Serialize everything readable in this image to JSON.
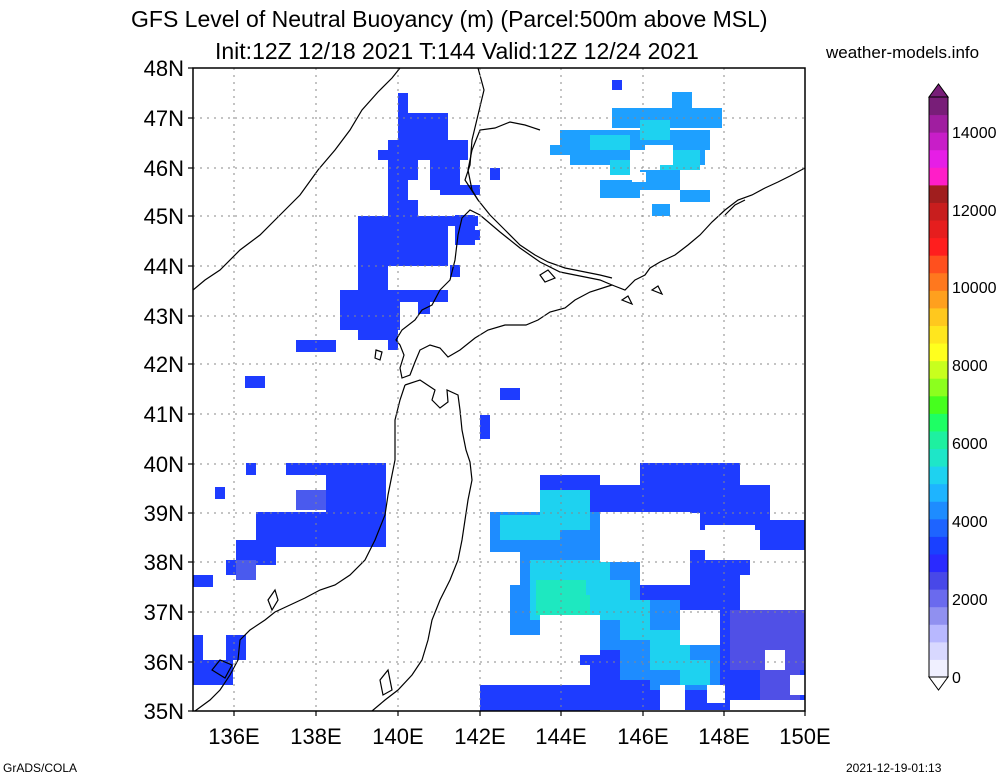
{
  "title_line1": "GFS Level of Neutral Buoyancy (m) (Parcel:500m above MSL)",
  "title_line2": "Init:12Z 12/18 2021 T:144 Valid:12Z 12/24 2021",
  "site": "weather-models.info",
  "footer_left": "GrADS/COLA",
  "footer_right": "2021-12-19-01:13",
  "lat_labels": [
    "48N",
    "47N",
    "46N",
    "45N",
    "44N",
    "43N",
    "42N",
    "41N",
    "40N",
    "39N",
    "38N",
    "37N",
    "36N",
    "35N"
  ],
  "lon_labels": [
    "136E",
    "138E",
    "140E",
    "142E",
    "144E",
    "146E",
    "148E",
    "150E"
  ],
  "colorbar": {
    "labels": [
      "14000",
      "12000",
      "10000",
      "8000",
      "6000",
      "4000",
      "2000",
      "0"
    ],
    "colors": [
      "#f0f0ff",
      "#d8d8ff",
      "#b8b8ff",
      "#9090f0",
      "#6a6aee",
      "#4848e8",
      "#2a2aff",
      "#1a40ff",
      "#1e64ff",
      "#1e8cff",
      "#1eb4ff",
      "#1ed2f0",
      "#1ee6c8",
      "#1ef0a0",
      "#1eff64",
      "#46ff1e",
      "#8cff1e",
      "#c8ff1e",
      "#ffff1e",
      "#ffe61e",
      "#ffc81e",
      "#ffa01e",
      "#ff781e",
      "#ff501e",
      "#ff1e1e",
      "#e61e1e",
      "#c81e1e",
      "#a01e1e",
      "#ff1ec8",
      "#e61ee6",
      "#c81ec8",
      "#a01ea0",
      "#781e78"
    ],
    "icon_top": "triangle-up-icon",
    "icon_bottom": "triangle-down-icon"
  },
  "colors": {
    "blue_2000": "#1e3cff",
    "blue_1500": "#2a2aee",
    "cyan_3000": "#1ea0ff",
    "teal_4000": "#1ed8c8",
    "violet_1000": "#5050e6"
  }
}
